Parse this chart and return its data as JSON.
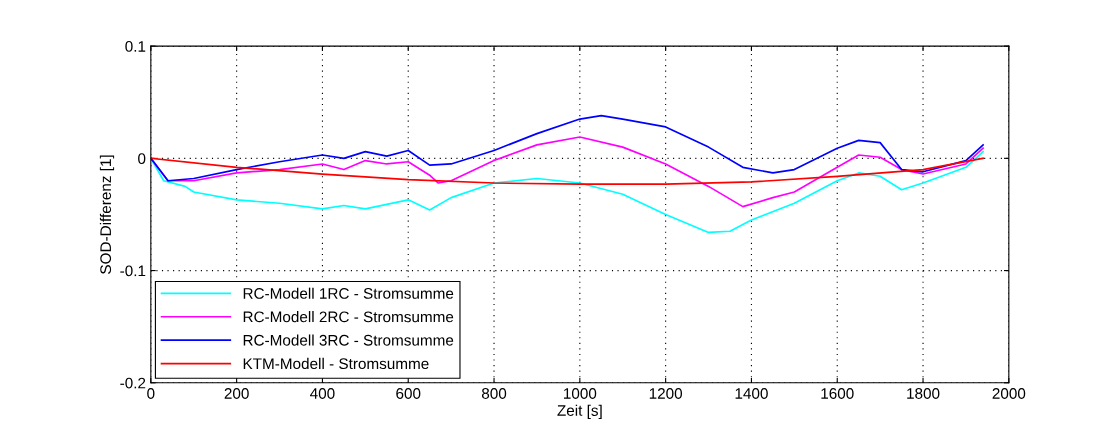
{
  "chart_data": {
    "type": "line",
    "xlabel": "Zeit [s]",
    "ylabel": "SOD-Differenz [1]",
    "xlim": [
      0,
      2000
    ],
    "ylim": [
      -0.2,
      0.1
    ],
    "xticks": [
      0,
      200,
      400,
      600,
      800,
      1000,
      1200,
      1400,
      1600,
      1800,
      2000
    ],
    "yticks": [
      -0.2,
      -0.1,
      0,
      0.1
    ],
    "grid": true,
    "legend": "bottom left",
    "line_style": "solid",
    "marker": "none",
    "series": [
      {
        "name": "RC-Modell 1RC - Stromsumme",
        "color": "#00ffff",
        "x": [
          0,
          30,
          80,
          100,
          200,
          300,
          400,
          450,
          500,
          600,
          650,
          700,
          800,
          900,
          1000,
          1100,
          1200,
          1300,
          1350,
          1400,
          1500,
          1600,
          1650,
          1700,
          1750,
          1800,
          1900,
          1940
        ],
        "values": [
          0,
          -0.02,
          -0.025,
          -0.03,
          -0.037,
          -0.04,
          -0.045,
          -0.042,
          -0.045,
          -0.037,
          -0.046,
          -0.035,
          -0.022,
          -0.018,
          -0.022,
          -0.032,
          -0.05,
          -0.066,
          -0.065,
          -0.055,
          -0.04,
          -0.02,
          -0.013,
          -0.016,
          -0.028,
          -0.022,
          -0.008,
          0.006
        ]
      },
      {
        "name": "RC-Modell 2RC - Stromsumme",
        "color": "#ff00ff",
        "x": [
          0,
          40,
          100,
          200,
          300,
          400,
          450,
          500,
          550,
          600,
          650,
          670,
          700,
          800,
          900,
          1000,
          1100,
          1200,
          1300,
          1380,
          1450,
          1500,
          1600,
          1650,
          1700,
          1750,
          1800,
          1900,
          1940
        ],
        "values": [
          0,
          -0.02,
          -0.02,
          -0.013,
          -0.01,
          -0.005,
          -0.01,
          -0.002,
          -0.005,
          -0.003,
          -0.015,
          -0.022,
          -0.02,
          -0.002,
          0.012,
          0.019,
          0.01,
          -0.005,
          -0.025,
          -0.043,
          -0.035,
          -0.03,
          -0.008,
          0.003,
          0.001,
          -0.01,
          -0.014,
          -0.005,
          0.009
        ]
      },
      {
        "name": "RC-Modell 3RC - Stromsumme",
        "color": "#0000ff",
        "x": [
          0,
          40,
          100,
          200,
          300,
          400,
          450,
          500,
          550,
          600,
          650,
          700,
          800,
          900,
          1000,
          1050,
          1100,
          1200,
          1300,
          1380,
          1450,
          1500,
          1600,
          1650,
          1700,
          1750,
          1800,
          1900,
          1940
        ],
        "values": [
          0,
          -0.02,
          -0.018,
          -0.01,
          -0.003,
          0.003,
          0,
          0.006,
          0.002,
          0.007,
          -0.006,
          -0.005,
          0.007,
          0.022,
          0.035,
          0.038,
          0.035,
          0.028,
          0.01,
          -0.008,
          -0.013,
          -0.01,
          0.009,
          0.016,
          0.014,
          -0.01,
          -0.012,
          -0.002,
          0.012
        ]
      },
      {
        "name": "KTM-Modell - Stromsumme",
        "color": "#ff0000",
        "x": [
          0,
          200,
          400,
          600,
          800,
          1000,
          1200,
          1400,
          1600,
          1800,
          1940
        ],
        "values": [
          0,
          -0.008,
          -0.014,
          -0.019,
          -0.022,
          -0.023,
          -0.023,
          -0.021,
          -0.016,
          -0.01,
          0
        ]
      }
    ]
  }
}
